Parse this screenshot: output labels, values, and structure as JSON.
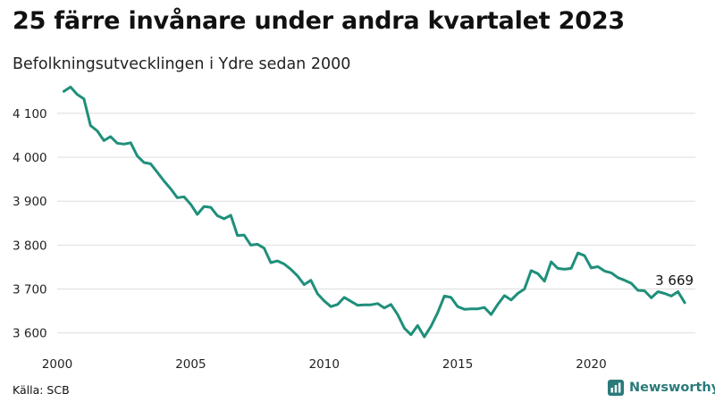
{
  "title": "25 färre invånare under andra kvartalet 2023",
  "subtitle": "Befolkningsutvecklingen i Ydre sedan 2000",
  "source": "Källa: SCB",
  "brand": "Newsworthy",
  "colors": {
    "line": "#1f8f7a",
    "grid": "#dddddd",
    "brand": "#2a7a7a"
  },
  "chart_data": {
    "type": "line",
    "title": "25 färre invånare under andra kvartalet 2023",
    "xlabel": "",
    "ylabel": "",
    "x_ticks": [
      2000,
      2005,
      2010,
      2015,
      2020
    ],
    "x_tick_labels": [
      "2000",
      "2005",
      "2010",
      "2015",
      "2020"
    ],
    "y_ticks": [
      3600,
      3700,
      3800,
      3900,
      4000,
      4100
    ],
    "y_tick_labels": [
      "3 600",
      "3 700",
      "3 800",
      "3 900",
      "4 000",
      "4 100"
    ],
    "xlim": [
      2000,
      2023.9
    ],
    "ylim": [
      3575,
      4175
    ],
    "grid": true,
    "last_value_label": "3 669",
    "series": [
      {
        "name": "Befolkning",
        "x": [
          2000.25,
          2000.5,
          2000.75,
          2001.0,
          2001.25,
          2001.5,
          2001.75,
          2002.0,
          2002.25,
          2002.5,
          2002.75,
          2003.0,
          2003.25,
          2003.5,
          2003.75,
          2004.0,
          2004.25,
          2004.5,
          2004.75,
          2005.0,
          2005.25,
          2005.5,
          2005.75,
          2006.0,
          2006.25,
          2006.5,
          2006.75,
          2007.0,
          2007.25,
          2007.5,
          2007.75,
          2008.0,
          2008.25,
          2008.5,
          2008.75,
          2009.0,
          2009.25,
          2009.5,
          2009.75,
          2010.0,
          2010.25,
          2010.5,
          2010.75,
          2011.0,
          2011.25,
          2011.5,
          2011.75,
          2012.0,
          2012.25,
          2012.5,
          2012.75,
          2013.0,
          2013.25,
          2013.5,
          2013.75,
          2014.0,
          2014.25,
          2014.5,
          2014.75,
          2015.0,
          2015.25,
          2015.5,
          2015.75,
          2016.0,
          2016.25,
          2016.5,
          2016.75,
          2017.0,
          2017.25,
          2017.5,
          2017.75,
          2018.0,
          2018.25,
          2018.5,
          2018.75,
          2019.0,
          2019.25,
          2019.5,
          2019.75,
          2020.0,
          2020.25,
          2020.5,
          2020.75,
          2021.0,
          2021.25,
          2021.5,
          2021.75,
          2022.0,
          2022.25,
          2022.5,
          2022.75,
          2023.0,
          2023.25,
          2023.5
        ],
        "values": [
          4150,
          4160,
          4143,
          4133,
          4072,
          4060,
          4038,
          4047,
          4032,
          4030,
          4033,
          4003,
          3988,
          3985,
          3966,
          3946,
          3928,
          3908,
          3910,
          3893,
          3870,
          3888,
          3886,
          3867,
          3860,
          3868,
          3822,
          3823,
          3800,
          3802,
          3793,
          3760,
          3764,
          3757,
          3745,
          3730,
          3710,
          3720,
          3689,
          3673,
          3660,
          3665,
          3681,
          3672,
          3663,
          3664,
          3664,
          3667,
          3657,
          3665,
          3642,
          3611,
          3596,
          3617,
          3591,
          3615,
          3646,
          3684,
          3681,
          3660,
          3654,
          3655,
          3655,
          3658,
          3642,
          3665,
          3685,
          3675,
          3690,
          3700,
          3742,
          3735,
          3718,
          3762,
          3747,
          3745,
          3747,
          3782,
          3776,
          3748,
          3751,
          3741,
          3737,
          3726,
          3720,
          3713,
          3697,
          3696,
          3680,
          3694,
          3690,
          3684,
          3694,
          3669
        ]
      }
    ]
  }
}
